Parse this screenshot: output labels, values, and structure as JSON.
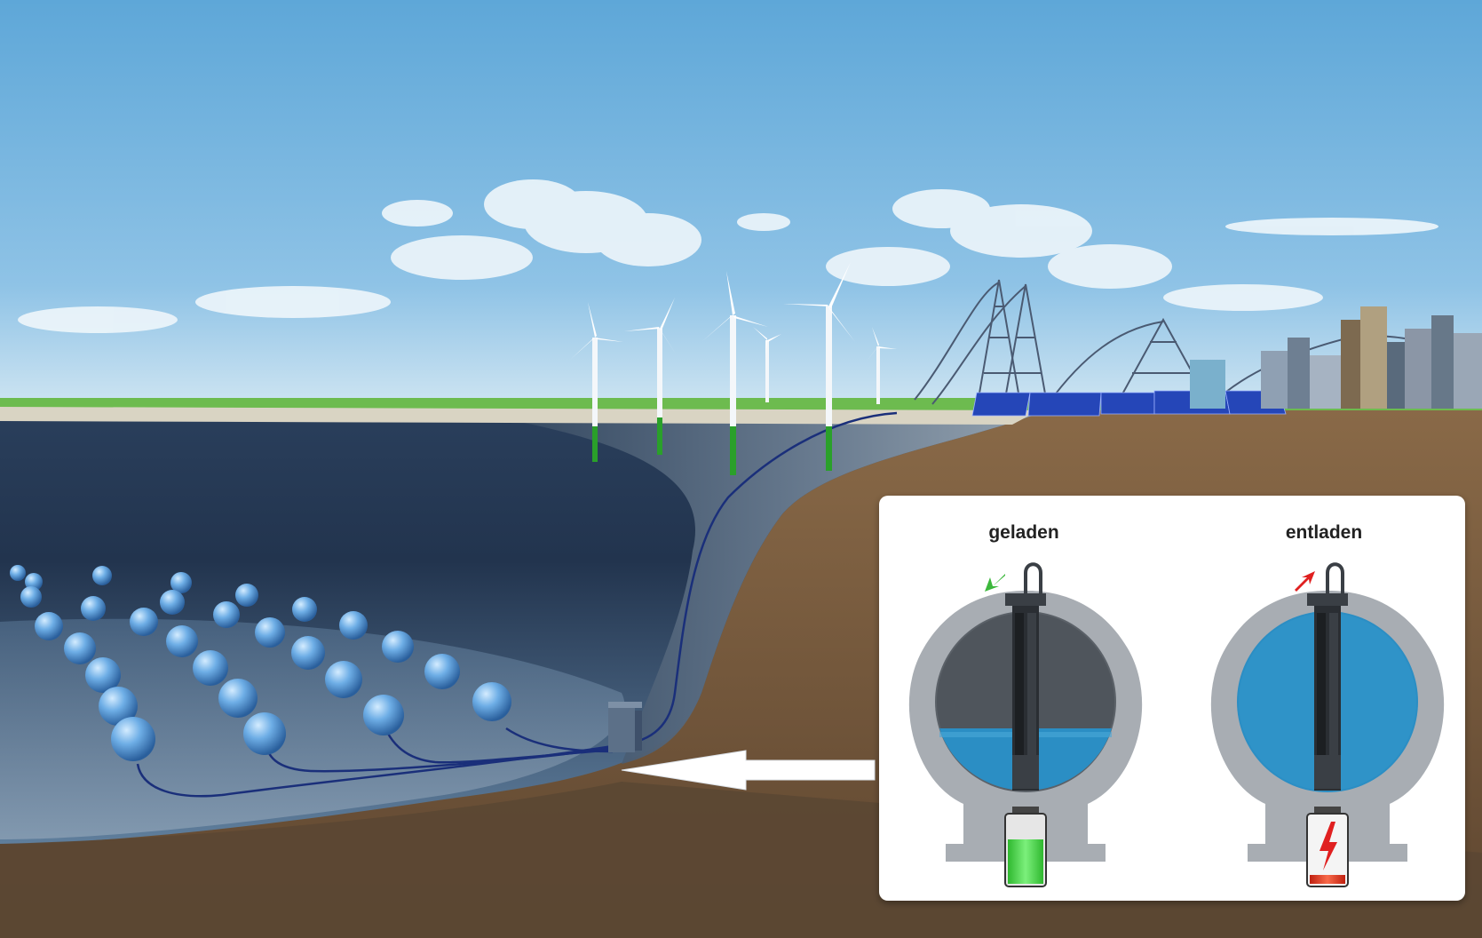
{
  "inset": {
    "charged_label": "geladen",
    "discharged_label": "entladen"
  },
  "colors": {
    "sky_top": "#5fa6d6",
    "sky_horizon": "#c8e2f2",
    "water_dark": "#1d2d45",
    "water_mid": "#4c6c8e",
    "seabed": "#7f93a8",
    "soil": "#7a5a3a",
    "sphere": "#4a8fd0",
    "sphere_water": "#2b8ec4",
    "sphere_shell": "#a9adb2",
    "battery_charged": "#3fd23f",
    "battery_discharged": "#e0301e",
    "arrow_in": "#3cb83c",
    "arrow_out": "#e02020",
    "solar_panel": "#2546b8",
    "turbine_base": "#2aa02a"
  },
  "icons": {
    "charged_flow": "arrow-down-left-icon",
    "discharged_flow": "arrow-up-right-icon",
    "lightning": "lightning-icon"
  }
}
